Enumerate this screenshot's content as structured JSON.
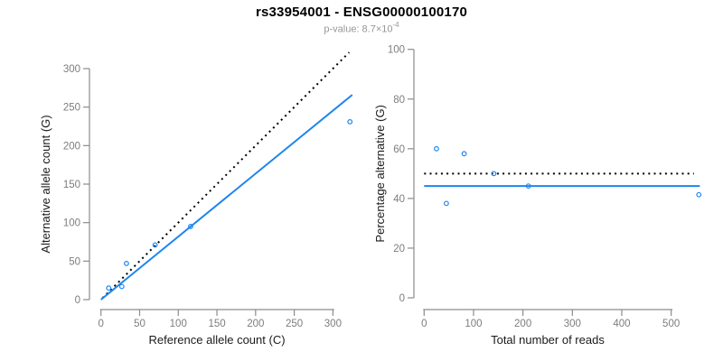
{
  "header": {
    "title": "rs33954001 - ENSG00000100170",
    "subtitle": {
      "text": "p-value: 8.7×10",
      "exponent": "-4"
    }
  },
  "colors": {
    "accent_blue": "#1C86EE",
    "dashed_black": "#000000",
    "axis_gray": "#8c8c8c",
    "tick_label_gray": "#7d7d7d",
    "axis_title_black": "#1a1a1a"
  },
  "chart_data": [
    {
      "type": "scatter",
      "name": "allele-counts",
      "xlabel": "Reference allele count (C)",
      "ylabel": "Alternative allele count (G)",
      "xticks": [
        0,
        50,
        100,
        150,
        200,
        250,
        300
      ],
      "yticks": [
        0,
        50,
        100,
        150,
        200,
        250,
        300
      ],
      "xlim": [
        0,
        325
      ],
      "ylim": [
        0,
        322
      ],
      "grid": false,
      "legend": false,
      "points": [
        [
          10,
          15
        ],
        [
          27,
          17
        ],
        [
          33,
          47
        ],
        [
          70,
          71
        ],
        [
          116,
          95
        ],
        [
          322,
          231
        ]
      ],
      "lines": [
        {
          "name": "identity-line",
          "style": "dotted",
          "color": "#000000",
          "x1": 2,
          "y1": 2,
          "x2": 321,
          "y2": 321
        },
        {
          "name": "fit-line",
          "style": "solid",
          "color": "#1C86EE",
          "x1": 0,
          "y1": 0,
          "x2": 325,
          "y2": 265.9
        }
      ]
    },
    {
      "type": "scatter",
      "name": "percentage-alternative",
      "xlabel": "Total number of reads",
      "ylabel": "Percentage alternative (G)",
      "xticks": [
        0,
        100,
        200,
        300,
        400,
        500
      ],
      "yticks": [
        0,
        20,
        40,
        60,
        80,
        100
      ],
      "xlim": [
        0,
        560
      ],
      "ylim": [
        0,
        100
      ],
      "grid": false,
      "legend": false,
      "points": [
        [
          25,
          60
        ],
        [
          45,
          38
        ],
        [
          81,
          58
        ],
        [
          141,
          50
        ],
        [
          211,
          45
        ],
        [
          556,
          41.5
        ]
      ],
      "lines": [
        {
          "name": "expected-50-line",
          "style": "dotted",
          "color": "#000000",
          "x1": 0,
          "y1": 50,
          "x2": 546,
          "y2": 50
        },
        {
          "name": "mean-percentage-line",
          "style": "solid",
          "color": "#1C86EE",
          "x1": 0,
          "y1": 45,
          "x2": 558,
          "y2": 45
        }
      ]
    }
  ]
}
